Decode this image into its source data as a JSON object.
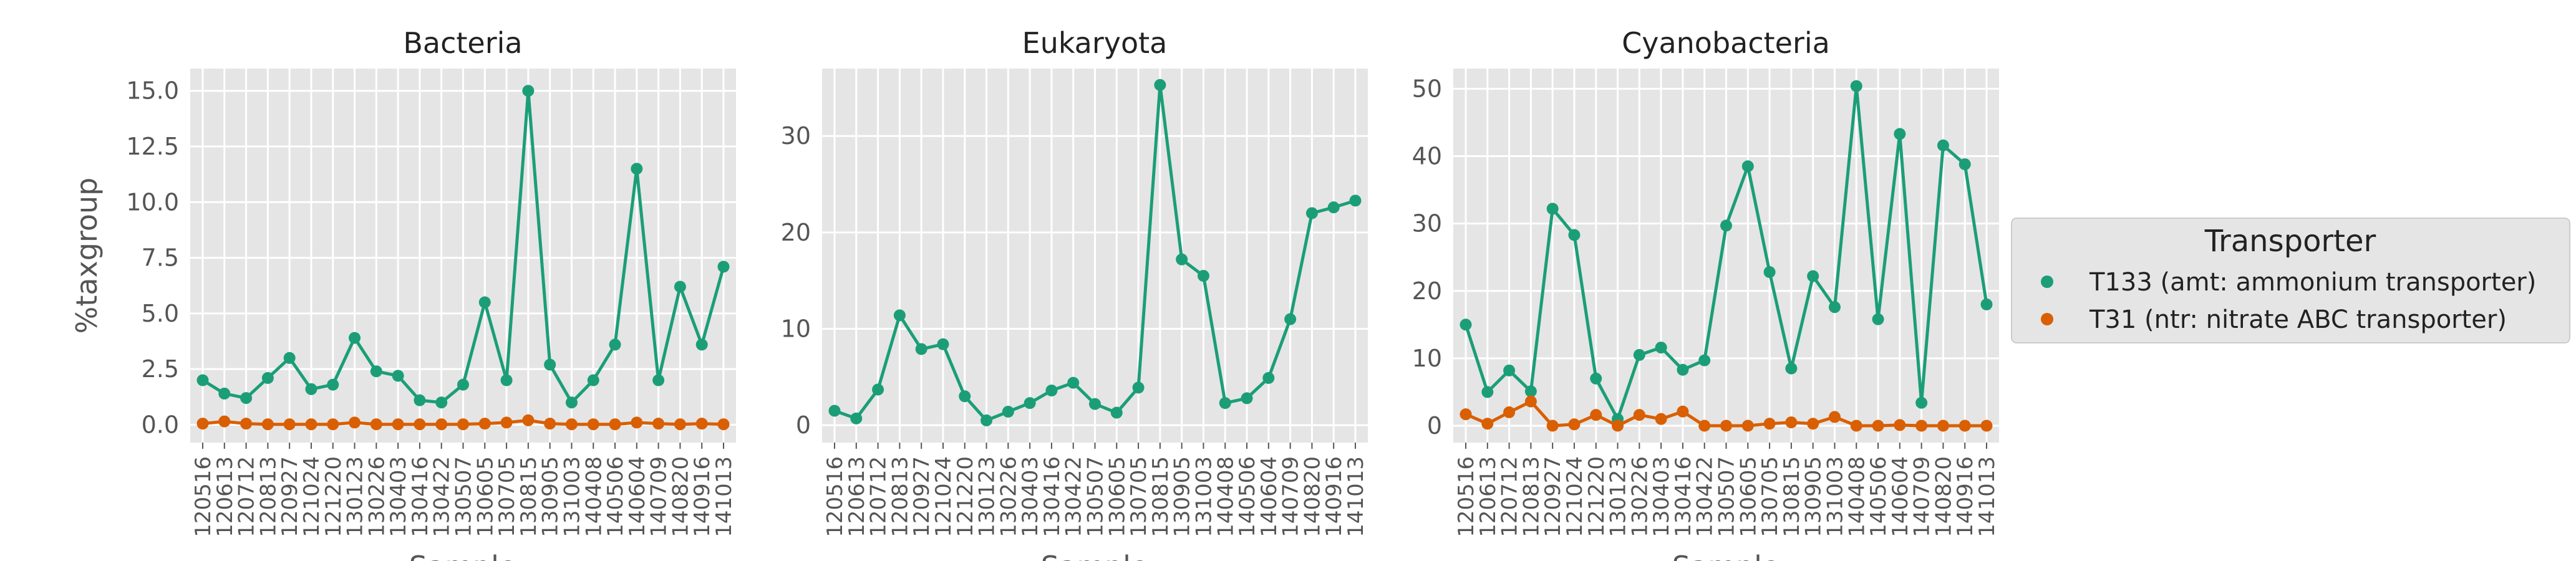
{
  "colors": {
    "background": "#ffffff",
    "plot_background": "#e5e5e5",
    "grid": "#ffffff",
    "legend_background": "#e5e5e5",
    "legend_border": "#cccccc"
  },
  "legend": {
    "title": "Transporter",
    "placement": "right",
    "entries": [
      {
        "label": "T133 (amt: ammonium transporter)",
        "color": "#1b9e77"
      },
      {
        "label": "T31 (ntr: nitrate ABC transporter)",
        "color": "#d95f02"
      }
    ]
  },
  "chart_data": [
    {
      "type": "line",
      "title": "Bacteria",
      "xlabel": "Sample",
      "ylabel": "%taxgroup",
      "grid": true,
      "ylim": [
        -0.8,
        16.0
      ],
      "yticks": [
        "0.0",
        "2.5",
        "5.0",
        "7.5",
        "10.0",
        "12.5",
        "15.0"
      ],
      "categories": [
        "120516",
        "120613",
        "120712",
        "120813",
        "120927",
        "121024",
        "121220",
        "130123",
        "130226",
        "130403",
        "130416",
        "130422",
        "130507",
        "130605",
        "130705",
        "130815",
        "130905",
        "131003",
        "140408",
        "140506",
        "140604",
        "140709",
        "140820",
        "140916",
        "141013"
      ],
      "series": [
        {
          "name": "T133 (amt: ammonium transporter)",
          "color": "#1b9e77",
          "values": [
            2.0,
            1.4,
            1.2,
            2.1,
            3.0,
            1.6,
            1.8,
            3.9,
            2.4,
            2.2,
            1.1,
            1.0,
            1.8,
            5.5,
            2.0,
            15.0,
            2.7,
            1.0,
            2.0,
            3.6,
            11.5,
            2.0,
            6.2,
            3.6,
            7.1
          ]
        },
        {
          "name": "T31 (ntr: nitrate ABC transporter)",
          "color": "#d95f02",
          "values": [
            0.05,
            0.15,
            0.05,
            0.02,
            0.02,
            0.02,
            0.02,
            0.1,
            0.02,
            0.02,
            0.02,
            0.02,
            0.02,
            0.05,
            0.1,
            0.2,
            0.05,
            0.02,
            0.02,
            0.02,
            0.1,
            0.05,
            0.02,
            0.05,
            0.02
          ]
        }
      ]
    },
    {
      "type": "line",
      "title": "Eukaryota",
      "xlabel": "Sample",
      "ylabel": "",
      "grid": true,
      "ylim": [
        -1.8,
        37.0
      ],
      "yticks": [
        "0",
        "10",
        "20",
        "30"
      ],
      "categories": [
        "120516",
        "120613",
        "120712",
        "120813",
        "120927",
        "121024",
        "121220",
        "130123",
        "130226",
        "130403",
        "130416",
        "130422",
        "130507",
        "130605",
        "130705",
        "130815",
        "130905",
        "131003",
        "140408",
        "140506",
        "140604",
        "140709",
        "140820",
        "140916",
        "141013"
      ],
      "series": [
        {
          "name": "T133 (amt: ammonium transporter)",
          "color": "#1b9e77",
          "values": [
            1.5,
            0.7,
            3.7,
            11.4,
            7.9,
            8.4,
            3.0,
            0.5,
            1.4,
            2.3,
            3.6,
            4.4,
            2.2,
            1.3,
            3.9,
            35.3,
            17.2,
            15.5,
            2.3,
            2.8,
            4.9,
            11.0,
            22.0,
            22.6,
            23.3
          ]
        }
      ]
    },
    {
      "type": "line",
      "title": "Cyanobacteria",
      "xlabel": "Sample",
      "ylabel": "",
      "grid": true,
      "ylim": [
        -2.5,
        53.0
      ],
      "yticks": [
        "0",
        "10",
        "20",
        "30",
        "40",
        "50"
      ],
      "categories": [
        "120516",
        "120613",
        "120712",
        "120813",
        "120927",
        "121024",
        "121220",
        "130123",
        "130226",
        "130403",
        "130416",
        "130422",
        "130507",
        "130605",
        "130705",
        "130815",
        "130905",
        "131003",
        "140408",
        "140506",
        "140604",
        "140709",
        "140820",
        "140916",
        "141013"
      ],
      "series": [
        {
          "name": "T133 (amt: ammonium transporter)",
          "color": "#1b9e77",
          "values": [
            15.0,
            5.0,
            8.2,
            5.1,
            32.2,
            28.3,
            7.0,
            1.0,
            10.5,
            11.6,
            8.3,
            9.7,
            29.7,
            38.5,
            22.8,
            8.5,
            22.2,
            17.6,
            50.4,
            15.8,
            43.3,
            3.4,
            41.6,
            38.8,
            18.0
          ]
        },
        {
          "name": "T31 (ntr: nitrate ABC transporter)",
          "color": "#d95f02",
          "values": [
            1.7,
            0.3,
            2.0,
            3.6,
            0.0,
            0.2,
            1.6,
            0.0,
            1.6,
            1.0,
            2.1,
            0.0,
            0.0,
            0.0,
            0.3,
            0.5,
            0.3,
            1.3,
            0.0,
            0.0,
            0.1,
            0.0,
            0.0,
            0.0,
            0.0
          ]
        }
      ]
    }
  ]
}
